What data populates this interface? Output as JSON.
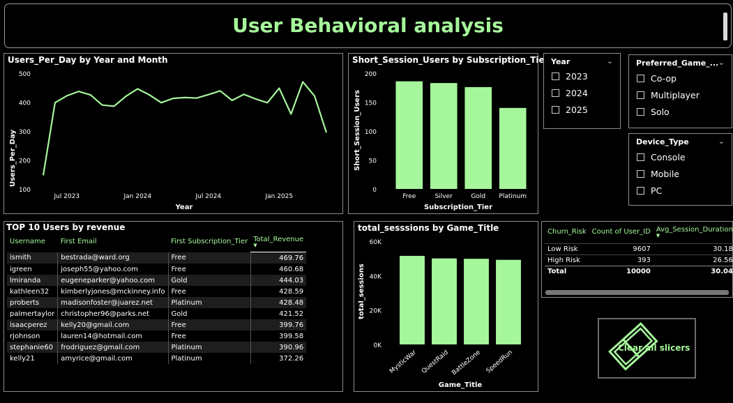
{
  "header": {
    "title": "User Behavioral analysis"
  },
  "line_chart": {
    "title": "Users_Per_Day by Year and Month",
    "chart_data": {
      "type": "line",
      "xlabel": "Year",
      "ylabel": "Users_Per_Day",
      "ylim": [
        100,
        500
      ],
      "yticks": [
        "500",
        "400",
        "300",
        "200",
        "100"
      ],
      "xticks": [
        "Jul 2023",
        "Jan 2024",
        "Jul 2024",
        "Jan 2025"
      ],
      "xtick_index": [
        2,
        8,
        14,
        20
      ],
      "color": "#a6f79b",
      "values": [
        147,
        398,
        422,
        437,
        425,
        390,
        386,
        420,
        446,
        425,
        398,
        413,
        416,
        414,
        426,
        439,
        406,
        427,
        411,
        398,
        448,
        359,
        470,
        421,
        295
      ]
    }
  },
  "bar_chart": {
    "title": "Short_Session_Users by Subscription_Tier",
    "chart_data": {
      "type": "bar",
      "xlabel": "Subscription_Tier",
      "ylabel": "Short_Session_Users",
      "ylim": [
        0,
        200
      ],
      "yticks": [
        "200",
        "150",
        "100",
        "50",
        "0"
      ],
      "categories": [
        "Free",
        "Silver",
        "Gold",
        "Platinum"
      ],
      "values": [
        186,
        183,
        176,
        140
      ],
      "color": "#a6f79b"
    }
  },
  "slicers": {
    "year": {
      "title": "Year",
      "options": [
        "2023",
        "2024",
        "2025"
      ]
    },
    "game": {
      "title": "Preferred_Game_...",
      "options": [
        "Co-op",
        "Multiplayer",
        "Solo"
      ]
    },
    "device": {
      "title": "Device_Type",
      "options": [
        "Console",
        "Mobile",
        "PC"
      ]
    }
  },
  "top_users": {
    "title": "TOP 10 Users by revenue",
    "columns": [
      "Username",
      "First Email",
      "First Subscription_Tier",
      "Total_Revenue"
    ],
    "rows": [
      [
        "ismith",
        "bestrada@ward.org",
        "Free",
        "469.76"
      ],
      [
        "igreen",
        "joseph55@yahoo.com",
        "Free",
        "460.68"
      ],
      [
        "lmiranda",
        "eugeneparker@yahoo.com",
        "Gold",
        "444.03"
      ],
      [
        "kathleen32",
        "kimberlyjones@mckinney.info",
        "Free",
        "428.59"
      ],
      [
        "proberts",
        "madisonfoster@juarez.net",
        "Platinum",
        "428.48"
      ],
      [
        "palmertaylor",
        "christopher96@parks.net",
        "Gold",
        "421.52"
      ],
      [
        "isaacperez",
        "kelly20@gmail.com",
        "Free",
        "399.76"
      ],
      [
        "rjohnson",
        "lauren14@hotmail.com",
        "Free",
        "399.58"
      ],
      [
        "stephanie60",
        "frodriguez@gmail.com",
        "Platinum",
        "390.96"
      ],
      [
        "kelly21",
        "amyrice@gmail.com",
        "Platinum",
        "372.26"
      ]
    ]
  },
  "sessions_chart": {
    "title": "total_sesssions by Game_Title",
    "chart_data": {
      "type": "bar",
      "xlabel": "Game_Title",
      "ylabel": "total_sessions",
      "ylim": [
        0,
        60000
      ],
      "yticks": [
        "60K",
        "40K",
        "20K",
        "0K"
      ],
      "categories": [
        "MysticWar",
        "QuestRaid",
        "BattleZone",
        "SpeedRun"
      ],
      "values": [
        51500,
        50000,
        49800,
        49200
      ],
      "color": "#a6f79b"
    }
  },
  "churn_table": {
    "columns": [
      "Churn_Risk",
      "Count of User_ID",
      "Avg_Session_Duration"
    ],
    "rows": [
      [
        "Low Risk",
        "9607",
        "30.18"
      ],
      [
        "High Risk",
        "393",
        "26.56"
      ]
    ],
    "total": [
      "Total",
      "10000",
      "30.04"
    ]
  },
  "clear_button": {
    "label": "Clear all slicers"
  }
}
